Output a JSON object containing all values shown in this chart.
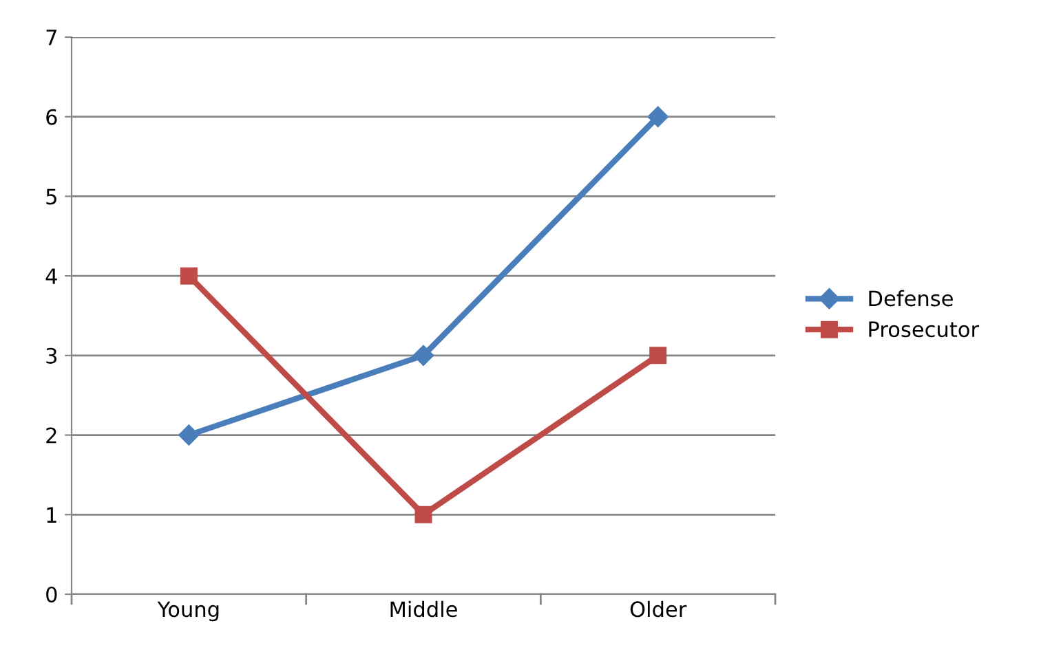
{
  "chart_data": {
    "type": "line",
    "categories": [
      "Young",
      "Middle",
      "Older"
    ],
    "series": [
      {
        "name": "Defense",
        "color": "#4a7ebb",
        "values": [
          2,
          3,
          6
        ],
        "marker": "diamond"
      },
      {
        "name": "Prosecutor",
        "color": "#be4b48",
        "values": [
          4,
          1,
          3
        ],
        "marker": "square"
      }
    ],
    "ylim": [
      0,
      7
    ],
    "yticks": [
      0,
      1,
      2,
      3,
      4,
      5,
      6,
      7
    ],
    "grid": "y",
    "legend": "right",
    "line_style": "solid"
  }
}
